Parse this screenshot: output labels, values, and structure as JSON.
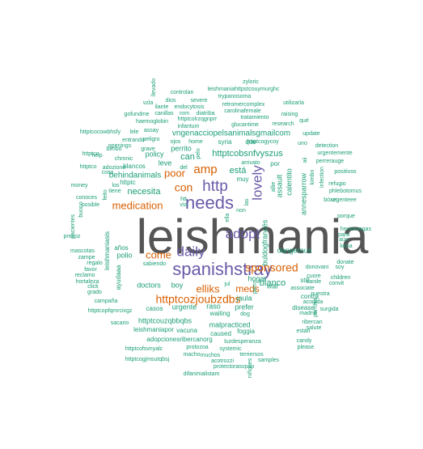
{
  "colors": {
    "background": "#ffffff",
    "tier_huge": "#555555",
    "tier_purple": "#6a5aa8",
    "tier_orange": "#d95f02",
    "tier_green": "#1b9e77"
  },
  "words": [
    {
      "text": "leishmania",
      "tier": "huge"
    },
    {
      "text": "spanishstray",
      "tier": "purple"
    },
    {
      "text": "needs",
      "tier": "purple"
    },
    {
      "text": "daily",
      "tier": "purple"
    },
    {
      "text": "adopt",
      "tier": "purple"
    },
    {
      "text": "http",
      "tier": "purple"
    },
    {
      "text": "lovely",
      "tier": "purple"
    },
    {
      "text": "httptcozjoubzdbs",
      "tier": "orange"
    },
    {
      "text": "medication",
      "tier": "orange"
    },
    {
      "text": "sponsored",
      "tier": "orange"
    },
    {
      "text": "come",
      "tier": "orange"
    },
    {
      "text": "con",
      "tier": "orange"
    },
    {
      "text": "amp",
      "tier": "orange"
    },
    {
      "text": "poor",
      "tier": "orange"
    },
    {
      "text": "elliks",
      "tier": "orange"
    },
    {
      "text": "meds",
      "tier": "orange"
    },
    {
      "text": "httptcobsnfvyszus",
      "tier": "green"
    },
    {
      "text": "necesita",
      "tier": "green"
    },
    {
      "text": "behindanimals",
      "tier": "green"
    },
    {
      "text": "blanco",
      "tier": "green"
    },
    {
      "text": "está",
      "tier": "green"
    },
    {
      "text": "can",
      "tier": "green"
    },
    {
      "text": "perrito",
      "tier": "green"
    },
    {
      "text": "policy",
      "tier": "green"
    },
    {
      "text": "leve",
      "tier": "green"
    },
    {
      "text": "blancos",
      "tier": "green"
    },
    {
      "text": "httptc",
      "tier": "green"
    },
    {
      "text": "vngenacciopelsanimalsgmailcom",
      "tier": "green"
    },
    {
      "text": "syria",
      "tier": "green"
    },
    {
      "text": "que",
      "tier": "green"
    },
    {
      "text": "muy",
      "tier": "green"
    },
    {
      "text": "por",
      "tier": "green"
    },
    {
      "text": "hogar",
      "tier": "green"
    },
    {
      "text": "war",
      "tier": "green"
    },
    {
      "text": "doctors",
      "tier": "green"
    },
    {
      "text": "boy",
      "tier": "green"
    },
    {
      "text": "urgente",
      "tier": "green"
    },
    {
      "text": "raso",
      "tier": "green"
    },
    {
      "text": "jaula",
      "tier": "green"
    },
    {
      "text": "prefer",
      "tier": "green"
    },
    {
      "text": "httptcouzqbbqbs",
      "tier": "green"
    },
    {
      "text": "malpracticed",
      "tier": "green"
    },
    {
      "text": "casos",
      "tier": "green"
    },
    {
      "text": "dangerous",
      "tier": "green"
    },
    {
      "text": "still",
      "tier": "green"
    },
    {
      "text": "polio",
      "tier": "green"
    },
    {
      "text": "años",
      "tier": "green"
    },
    {
      "text": "waiting",
      "tier": "green"
    },
    {
      "text": "caused",
      "tier": "green"
    },
    {
      "text": "foggia",
      "tier": "green"
    },
    {
      "text": "contra",
      "tier": "green"
    },
    {
      "text": "disease",
      "tier": "green"
    },
    {
      "text": "buldogfrancés",
      "tier": "green"
    },
    {
      "text": "assault",
      "tier": "green"
    },
    {
      "text": "calentito",
      "tier": "green"
    },
    {
      "text": "annesparrow",
      "tier": "green"
    },
    {
      "text": "vacuna",
      "tier": "green"
    },
    {
      "text": "leishmaniapor",
      "tier": "green"
    },
    {
      "text": "adopcionesribercanorg",
      "tier": "green"
    },
    {
      "text": "zyloric",
      "tier": "green"
    },
    {
      "text": "leishmaniahttpstcouymurghc",
      "tier": "green"
    },
    {
      "text": "controlan",
      "tier": "green"
    },
    {
      "text": "trypanosoma",
      "tier": "green"
    },
    {
      "text": "dios",
      "tier": "green"
    },
    {
      "text": "severe",
      "tier": "green"
    },
    {
      "text": "retromercomplex",
      "tier": "green"
    },
    {
      "text": "utilizarla",
      "tier": "green"
    },
    {
      "text": "endocytosis",
      "tier": "green"
    },
    {
      "text": "carolinafemale",
      "tier": "green"
    },
    {
      "text": "raising",
      "tier": "green"
    },
    {
      "text": "gofundme",
      "tier": "green"
    },
    {
      "text": "canillas",
      "tier": "green"
    },
    {
      "text": "rom",
      "tier": "green"
    },
    {
      "text": "diatriba",
      "tier": "green"
    },
    {
      "text": "httptcolrzqgnprr",
      "tier": "green"
    },
    {
      "text": "tratamiento",
      "tier": "green"
    },
    {
      "text": "haemoglobin",
      "tier": "green"
    },
    {
      "text": "infantum",
      "tier": "green"
    },
    {
      "text": "glucantime",
      "tier": "green"
    },
    {
      "text": "research",
      "tier": "green"
    },
    {
      "text": "qué",
      "tier": "green"
    },
    {
      "text": "httptcocowbhsfy",
      "tier": "green"
    },
    {
      "text": "lele",
      "tier": "green"
    },
    {
      "text": "assay",
      "tier": "green"
    },
    {
      "text": "update",
      "tier": "green"
    },
    {
      "text": "entrando",
      "tier": "green"
    },
    {
      "text": "peligro",
      "tier": "green"
    },
    {
      "text": "httptcogycoy",
      "tier": "green"
    },
    {
      "text": "openings",
      "tier": "green"
    },
    {
      "text": "ojos",
      "tier": "green"
    },
    {
      "text": "home",
      "tier": "green"
    },
    {
      "text": "arrivato",
      "tier": "green"
    },
    {
      "text": "uno",
      "tier": "green"
    },
    {
      "text": "detection",
      "tier": "green"
    },
    {
      "text": "httptco",
      "tier": "green"
    },
    {
      "text": "grave",
      "tier": "green"
    },
    {
      "text": "urgentemente",
      "tier": "green"
    },
    {
      "text": "bimbo",
      "tier": "green"
    },
    {
      "text": "help",
      "tier": "green"
    },
    {
      "text": "chronic",
      "tier": "green"
    },
    {
      "text": "perrerauge",
      "tier": "green"
    },
    {
      "text": "adozione",
      "tier": "green"
    },
    {
      "text": "del",
      "tier": "green"
    },
    {
      "text": "refugio",
      "tier": "green"
    },
    {
      "text": "positivos",
      "tier": "green"
    },
    {
      "text": "httptco",
      "tier": "green"
    },
    {
      "text": "cosa",
      "tier": "green"
    },
    {
      "text": "phlebotomus",
      "tier": "green"
    },
    {
      "text": "money",
      "tier": "green"
    },
    {
      "text": "tiene",
      "tier": "green"
    },
    {
      "text": "los",
      "tier": "green"
    },
    {
      "text": "bóxer",
      "tier": "green"
    },
    {
      "text": "urgenteee",
      "tier": "green"
    },
    {
      "text": "conoces",
      "tier": "green"
    },
    {
      "text": "posible",
      "tier": "green"
    },
    {
      "text": "htt",
      "tier": "green"
    },
    {
      "text": "vía",
      "tier": "green"
    },
    {
      "text": "porque",
      "tier": "green"
    },
    {
      "text": "hectorvegas",
      "tier": "green"
    },
    {
      "text": "aún",
      "tier": "green"
    },
    {
      "text": "kena",
      "tier": "green"
    },
    {
      "text": "para",
      "tier": "green"
    },
    {
      "text": "mascotas",
      "tier": "green"
    },
    {
      "text": "zampe",
      "tier": "green"
    },
    {
      "text": "regalo",
      "tier": "green"
    },
    {
      "text": "favor",
      "tier": "green"
    },
    {
      "text": "reclamo",
      "tier": "green"
    },
    {
      "text": "hortaleza",
      "tier": "green"
    },
    {
      "text": "click",
      "tier": "green"
    },
    {
      "text": "grado",
      "tier": "green"
    },
    {
      "text": "sabiendo",
      "tier": "green"
    },
    {
      "text": "donovani",
      "tier": "green"
    },
    {
      "text": "soy",
      "tier": "green"
    },
    {
      "text": "cuore",
      "tier": "green"
    },
    {
      "text": "children",
      "tier": "green"
    },
    {
      "text": "convit",
      "tier": "green"
    },
    {
      "text": "donate",
      "tier": "green"
    },
    {
      "text": "canile",
      "tier": "green"
    },
    {
      "text": "associate",
      "tier": "green"
    },
    {
      "text": "acogida",
      "tier": "green"
    },
    {
      "text": "nuestra",
      "tier": "green"
    },
    {
      "text": "surgida",
      "tier": "green"
    },
    {
      "text": "campaña",
      "tier": "green"
    },
    {
      "text": "httptcopfqmrcixgz",
      "tier": "green"
    },
    {
      "text": "sacario",
      "tier": "green"
    },
    {
      "text": "madrid",
      "tier": "green"
    },
    {
      "text": "ribercan",
      "tier": "green"
    },
    {
      "text": "salute",
      "tier": "green"
    },
    {
      "text": "están",
      "tier": "green"
    },
    {
      "text": "dog",
      "tier": "green"
    },
    {
      "text": "luzdesperanza",
      "tier": "green"
    },
    {
      "text": "protozoa",
      "tier": "green"
    },
    {
      "text": "httptcofsvnyalc",
      "tier": "green"
    },
    {
      "text": "systemic",
      "tier": "green"
    },
    {
      "text": "please",
      "tier": "green"
    },
    {
      "text": "candy",
      "tier": "green"
    },
    {
      "text": "macho",
      "tier": "green"
    },
    {
      "text": "muchos",
      "tier": "green"
    },
    {
      "text": "terriersos",
      "tier": "green"
    },
    {
      "text": "httptcogjmsutqbsj",
      "tier": "green"
    },
    {
      "text": "acotrozzi",
      "tier": "green"
    },
    {
      "text": "samples",
      "tier": "green"
    },
    {
      "text": "protectorasvpap",
      "tier": "green"
    },
    {
      "text": "difanimalistam",
      "tier": "green"
    },
    {
      "text": "niñones",
      "tier": "green"
    },
    {
      "text": "leishmaniasis",
      "tier": "green"
    },
    {
      "text": "ayudaaa",
      "tier": "green"
    },
    {
      "text": "perro",
      "tier": "green"
    },
    {
      "text": "vzla",
      "tier": "green"
    },
    {
      "text": "llevado",
      "tier": "green"
    },
    {
      "text": "ilante",
      "tier": "green"
    },
    {
      "text": "infection",
      "tier": "green"
    },
    {
      "text": "kimbo",
      "tier": "green"
    },
    {
      "text": "allie",
      "tier": "green"
    },
    {
      "text": "aii",
      "tier": "green"
    },
    {
      "text": "feito",
      "tier": "green"
    },
    {
      "text": "buono",
      "tier": "green"
    },
    {
      "text": "pacientes",
      "tier": "green"
    },
    {
      "text": "precoz",
      "tier": "green"
    },
    {
      "text": "las",
      "tier": "green"
    },
    {
      "text": "ella",
      "tier": "green"
    },
    {
      "text": "non",
      "tier": "green"
    },
    {
      "text": "jul",
      "tier": "green"
    },
    {
      "text": "perrosa",
      "tier": "green"
    },
    {
      "text": "pelo",
      "tier": "green"
    }
  ]
}
